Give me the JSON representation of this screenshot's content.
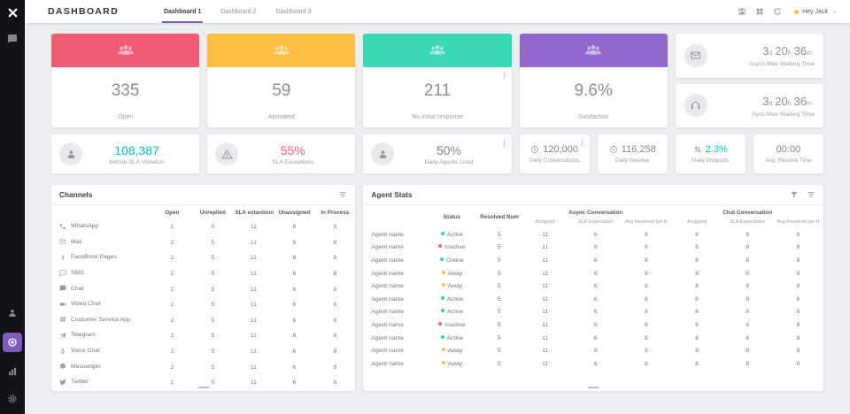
{
  "accent_color": "#7e5bc0",
  "sidebar": {
    "logo_icon": "xlogo",
    "top_items": [
      {
        "name": "conversations",
        "icon": "chat"
      }
    ],
    "bottom_items": [
      {
        "name": "agents",
        "icon": "agent",
        "active": false
      },
      {
        "name": "support",
        "icon": "support",
        "active": true
      },
      {
        "name": "analytics",
        "icon": "chart",
        "active": false
      },
      {
        "name": "settings",
        "icon": "gear",
        "active": false
      }
    ],
    "active_color": "#7e5bc0"
  },
  "topbar": {
    "title": "DASHBOARD",
    "tabs": [
      {
        "label": "Dashboard 1",
        "active": true
      },
      {
        "label": "Dashboard 2",
        "active": false
      },
      {
        "label": "Dashboard 3",
        "active": false
      }
    ],
    "icons": [
      "floppy",
      "grid",
      "refresh"
    ],
    "user": {
      "name": "Hey Jack",
      "status_color": "#fcc042",
      "chevron": "chevron"
    }
  },
  "top_cards": [
    {
      "value": "335",
      "label": "Open",
      "color": "#f15b74",
      "icon": "team"
    },
    {
      "value": "59",
      "label": "Atomated",
      "color": "#fcbf42",
      "icon": "team"
    },
    {
      "value": "211",
      "label": "No initial response",
      "color": "#3ad9b6",
      "icon": "team",
      "menu_icon": "kebab"
    },
    {
      "value": "9.6%",
      "label": "Satsfaction",
      "color": "#9268cd",
      "icon": "team"
    }
  ],
  "waiting_cards": [
    {
      "icon": "mail",
      "parts": [
        {
          "v": "3",
          "u": "d"
        },
        {
          "v": "20",
          "u": "h"
        },
        {
          "v": "36",
          "u": "m"
        }
      ],
      "label": "Async-Max Waiting Time"
    },
    {
      "icon": "headset",
      "parts": [
        {
          "v": "3",
          "u": "d"
        },
        {
          "v": "20",
          "u": "h"
        },
        {
          "v": "36",
          "u": "m"
        }
      ],
      "label": "Sync-Max Waiting Time"
    }
  ],
  "kpi_cards": [
    {
      "icon": "agent",
      "value": "108,387",
      "label": "Before SLA Violation",
      "value_color": "#00cfad"
    },
    {
      "icon": "warning",
      "value": "55%",
      "label": "SLA Exceptions",
      "value_color": "#ff5d80"
    },
    {
      "icon": "agent",
      "value": "50%",
      "label": "Daily Agents Load",
      "value_color": "#85858e",
      "menu_icon": "kebab"
    }
  ],
  "mini_cards": [
    {
      "icon": "clock",
      "value": "120,000",
      "label": "Daily Conversations",
      "value_color": "#85858e",
      "menu_icon": "kebab"
    },
    {
      "icon": "clock",
      "value": "116,258",
      "label": "Daily Resolve",
      "value_color": "#85858e"
    },
    {
      "icon": "percent",
      "value": "2.3%",
      "label": "Daily Dropouts",
      "value_color": "#00cfad"
    },
    {
      "value": "00:00",
      "label": "Avg. Resolve Time",
      "value_color": "#85858e"
    }
  ],
  "channels": {
    "title": "Channels",
    "toolbar_icons": [
      "filterlist"
    ],
    "columns": [
      "Open",
      "Unreplied",
      "SLA extantions",
      "Unassigned",
      "In Process"
    ],
    "rows": [
      {
        "icon": "whatsapp",
        "name": "WhatsApp",
        "values": [
          "2",
          "5",
          "11",
          "6",
          "8"
        ]
      },
      {
        "icon": "mail",
        "name": "Mail",
        "values": [
          "2",
          "5",
          "11",
          "6",
          "8"
        ]
      },
      {
        "icon": "facebook",
        "name": "FaceBook Pages",
        "values": [
          "2",
          "5",
          "11",
          "6",
          "8"
        ]
      },
      {
        "icon": "sms",
        "name": "SMS",
        "values": [
          "2",
          "5",
          "11",
          "6",
          "8"
        ]
      },
      {
        "icon": "chat",
        "name": "Chat",
        "values": [
          "2",
          "5",
          "11",
          "6",
          "8"
        ]
      },
      {
        "icon": "video",
        "name": "Video Chat",
        "values": [
          "2",
          "5",
          "11",
          "6",
          "8"
        ]
      },
      {
        "icon": "app",
        "name": "Costumer Service App",
        "values": [
          "2",
          "5",
          "11",
          "6",
          "8"
        ]
      },
      {
        "icon": "telegram",
        "name": "Telegram",
        "values": [
          "2",
          "5",
          "11",
          "6",
          "8"
        ]
      },
      {
        "icon": "voice",
        "name": "Voice Chat",
        "values": [
          "2",
          "5",
          "11",
          "6",
          "8"
        ]
      },
      {
        "icon": "messenger",
        "name": "Messenger",
        "values": [
          "2",
          "5",
          "11",
          "6",
          "8"
        ]
      },
      {
        "icon": "twitter",
        "name": "Twitter",
        "values": [
          "2",
          "5",
          "11",
          "6",
          "8"
        ]
      }
    ]
  },
  "agent_stats": {
    "title": "Agent Stats",
    "toolbar_icons": [
      "funnel",
      "filterlist"
    ],
    "header": {
      "status": "Status",
      "resolved": "Resolved Num",
      "async_group": "Async Conversation",
      "chat_group": "Chat Conversation",
      "subs": [
        "Assigned",
        "SLA Expectation",
        "Avg Resolved per H"
      ]
    },
    "status_colors": {
      "Active": "#2ed3b2",
      "Online": "#2ed3b2",
      "Inactive": "#ff5d80",
      "Away": "#fcc042"
    },
    "rows": [
      {
        "name": "Agent name",
        "status": "Active",
        "resolved": "5",
        "async": [
          "11",
          "6",
          "8"
        ],
        "chat": [
          "8",
          "8",
          "8"
        ]
      },
      {
        "name": "Agent name",
        "status": "Inactive",
        "resolved": "5",
        "async": [
          "11",
          "6",
          "8"
        ],
        "chat": [
          "8",
          "8",
          "8"
        ]
      },
      {
        "name": "Agent name",
        "status": "Online",
        "resolved": "5",
        "async": [
          "11",
          "6",
          "8"
        ],
        "chat": [
          "8",
          "8",
          "8"
        ]
      },
      {
        "name": "Agent name",
        "status": "Away",
        "resolved": "5",
        "async": [
          "11",
          "6",
          "8"
        ],
        "chat": [
          "8",
          "8",
          "8"
        ]
      },
      {
        "name": "Agent name",
        "status": "Away",
        "resolved": "5",
        "async": [
          "11",
          "6",
          "8"
        ],
        "chat": [
          "8",
          "8",
          "8"
        ]
      },
      {
        "name": "Agent name",
        "status": "Active",
        "resolved": "5",
        "async": [
          "11",
          "6",
          "8"
        ],
        "chat": [
          "8",
          "8",
          "8"
        ]
      },
      {
        "name": "Agent name",
        "status": "Active",
        "resolved": "5",
        "async": [
          "11",
          "6",
          "8"
        ],
        "chat": [
          "8",
          "8",
          "8"
        ]
      },
      {
        "name": "Agent name",
        "status": "Inactive",
        "resolved": "5",
        "async": [
          "11",
          "6",
          "8"
        ],
        "chat": [
          "8",
          "8",
          "8"
        ]
      },
      {
        "name": "Agent name",
        "status": "Active",
        "resolved": "5",
        "async": [
          "11",
          "6",
          "8"
        ],
        "chat": [
          "8",
          "8",
          "8"
        ]
      },
      {
        "name": "Agent name",
        "status": "Away",
        "resolved": "5",
        "async": [
          "11",
          "6",
          "8"
        ],
        "chat": [
          "8",
          "8",
          "8"
        ]
      },
      {
        "name": "Agent name",
        "status": "Away",
        "resolved": "5",
        "async": [
          "11",
          "6",
          "8"
        ],
        "chat": [
          "8",
          "8",
          "8"
        ]
      }
    ]
  }
}
